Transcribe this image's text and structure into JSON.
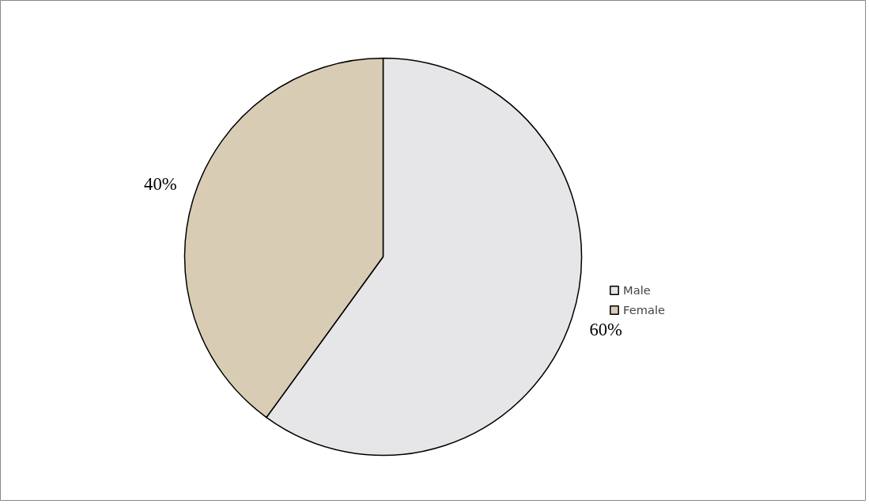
{
  "chart_data": {
    "type": "pie",
    "categories": [
      "Male",
      "Female"
    ],
    "values": [
      60,
      40
    ],
    "colors": [
      "#e6e6e8",
      "#d8cdb4"
    ],
    "value_labels": [
      "60%",
      "40%"
    ],
    "legend": "right"
  }
}
